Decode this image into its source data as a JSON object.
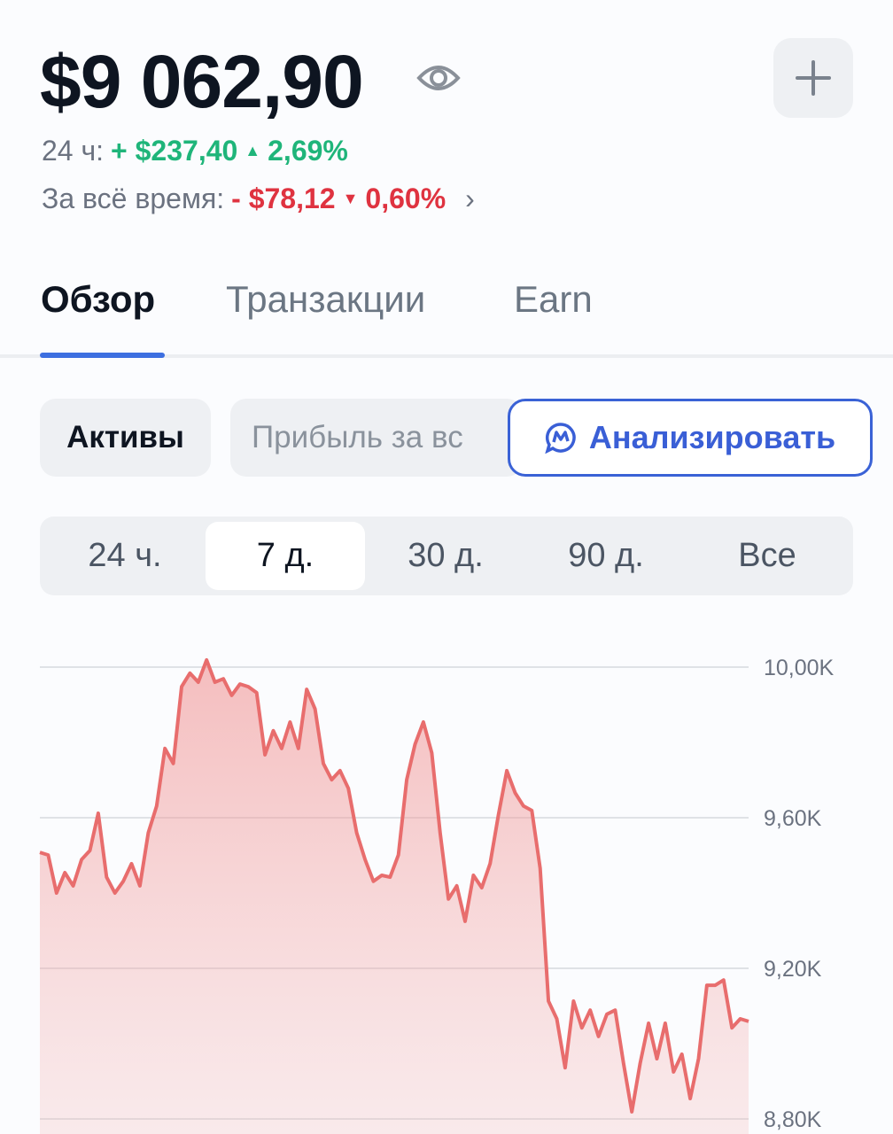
{
  "header": {
    "balance": "$9 062,90",
    "eye_icon": "eye-icon",
    "add_icon": "plus-icon"
  },
  "change_24h": {
    "label": "24 ч:",
    "amount": "+ $237,40",
    "percent": "2,69%",
    "direction": "up",
    "color": "#1fb57a"
  },
  "change_all": {
    "label": "За всё время:",
    "amount": "- $78,12",
    "percent": "0,60%",
    "direction": "down",
    "color": "#df3340"
  },
  "tabs": [
    {
      "label": "Обзор",
      "active": true
    },
    {
      "label": "Транзакции"
    },
    {
      "label": "Earn"
    }
  ],
  "chips": {
    "assets": "Активы",
    "profit": "Прибыль за вс",
    "analyze": "Анализировать"
  },
  "periods": [
    {
      "label": "24 ч."
    },
    {
      "label": "7 д.",
      "active": true
    },
    {
      "label": "30 д."
    },
    {
      "label": "90 д."
    },
    {
      "label": "Все"
    }
  ],
  "chart_data": {
    "type": "area",
    "y_tick_labels": [
      "10,00K",
      "9,60K",
      "9,20K",
      "8,80K"
    ],
    "y_ticks": [
      10000,
      9600,
      9200,
      8800
    ],
    "ylim": [
      8800,
      10000
    ],
    "grid": true,
    "color": "#e86d6d",
    "values": [
      9508,
      9501,
      9400,
      9454,
      9419,
      9489,
      9513,
      9612,
      9442,
      9400,
      9431,
      9478,
      9419,
      9560,
      9631,
      9784,
      9744,
      9948,
      9984,
      9960,
      10019,
      9960,
      9969,
      9925,
      9955,
      9948,
      9932,
      9767,
      9831,
      9784,
      9854,
      9784,
      9941,
      9889,
      9744,
      9701,
      9725,
      9678,
      9560,
      9489,
      9431,
      9447,
      9442,
      9501,
      9701,
      9795,
      9854,
      9772,
      9560,
      9384,
      9419,
      9325,
      9447,
      9414,
      9478,
      9607,
      9725,
      9666,
      9631,
      9619,
      9466,
      9113,
      9066,
      8936,
      9113,
      9042,
      9089,
      9019,
      9078,
      9089,
      8948,
      8819,
      8948,
      9054,
      8960,
      9054,
      8925,
      8972,
      8854,
      8960,
      9155,
      9155,
      9169,
      9042,
      9066,
      9059
    ]
  }
}
